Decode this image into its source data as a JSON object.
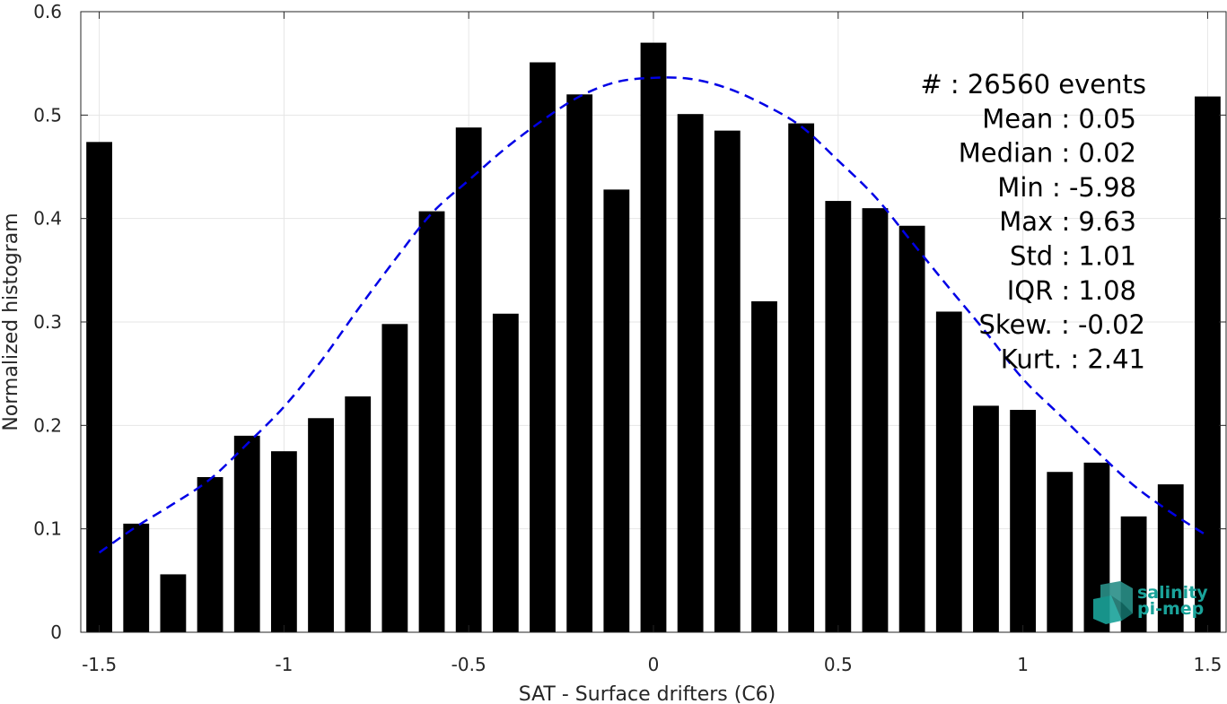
{
  "chart_data": {
    "type": "bar",
    "xlabel": "SAT - Surface drifters (C6)",
    "ylabel": "Normalized histogram",
    "xlim": [
      -1.55,
      1.55
    ],
    "ylim": [
      0,
      0.6
    ],
    "xticks": [
      -1.5,
      -1,
      -0.5,
      0,
      0.5,
      1,
      1.5
    ],
    "xtick_labels": [
      "-1.5",
      "-1",
      "-0.5",
      "0",
      "0.5",
      "1",
      "1.5"
    ],
    "yticks": [
      0,
      0.1,
      0.2,
      0.3,
      0.4,
      0.5,
      0.6
    ],
    "ytick_labels": [
      "0",
      "0.1",
      "0.2",
      "0.3",
      "0.4",
      "0.5",
      "0.6"
    ],
    "grid": true,
    "x": [
      -1.5,
      -1.4,
      -1.3,
      -1.2,
      -1.1,
      -1.0,
      -0.9,
      -0.8,
      -0.7,
      -0.6,
      -0.5,
      -0.4,
      -0.3,
      -0.2,
      -0.1,
      0.0,
      0.1,
      0.2,
      0.3,
      0.4,
      0.5,
      0.6,
      0.7,
      0.8,
      0.9,
      1.0,
      1.1,
      1.2,
      1.3,
      1.4,
      1.5
    ],
    "values": [
      0.474,
      0.105,
      0.056,
      0.15,
      0.19,
      0.175,
      0.207,
      0.228,
      0.298,
      0.407,
      0.488,
      0.308,
      0.551,
      0.52,
      0.428,
      0.57,
      0.501,
      0.485,
      0.32,
      0.492,
      0.417,
      0.41,
      0.393,
      0.31,
      0.219,
      0.215,
      0.155,
      0.164,
      0.112,
      0.143,
      0.518
    ],
    "bar_color": "#000000",
    "fit_curve": {
      "style": "dashed",
      "color": "#0000e6",
      "x": [
        -1.5,
        -1.4,
        -1.3,
        -1.2,
        -1.1,
        -1.0,
        -0.9,
        -0.8,
        -0.7,
        -0.6,
        -0.5,
        -0.4,
        -0.3,
        -0.2,
        -0.1,
        0.0,
        0.1,
        0.2,
        0.3,
        0.4,
        0.5,
        0.6,
        0.7,
        0.8,
        0.9,
        1.0,
        1.1,
        1.2,
        1.3,
        1.4,
        1.5
      ],
      "y": [
        0.077,
        0.102,
        0.124,
        0.148,
        0.182,
        0.218,
        0.262,
        0.312,
        0.36,
        0.405,
        0.437,
        0.468,
        0.495,
        0.518,
        0.532,
        0.536,
        0.535,
        0.526,
        0.51,
        0.489,
        0.456,
        0.421,
        0.377,
        0.333,
        0.29,
        0.245,
        0.21,
        0.175,
        0.142,
        0.116,
        0.093
      ]
    },
    "stats": [
      "#  : 26560 events",
      "Mean : 0.05",
      "Median : 0.02",
      "Min : -5.98",
      "Max : 9.63",
      "Std : 1.01",
      "IQR : 1.08",
      "Skew. : -0.02",
      "Kurt. : 2.41"
    ]
  },
  "logo": {
    "line1": "salinity",
    "line2": "pi-mep",
    "icon": "salinity-cube-logo-icon",
    "color": "#1aa39a"
  }
}
